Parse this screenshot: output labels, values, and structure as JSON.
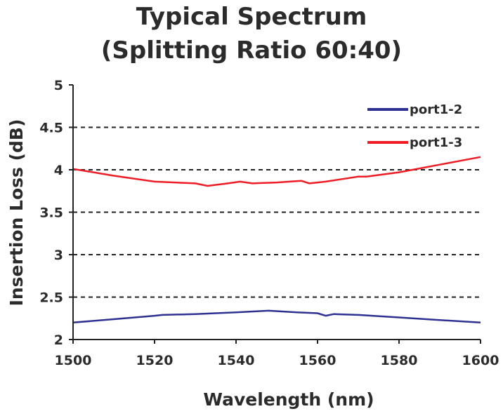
{
  "chart_data": {
    "type": "line",
    "title_line1": "Typical Spectrum",
    "title_line2": "(Splitting Ratio 60:40)",
    "xlabel": "Wavelength (nm)",
    "ylabel": "Insertion Loss (dB)",
    "xlim": [
      1500,
      1600
    ],
    "ylim": [
      2,
      5
    ],
    "xticks": [
      1500,
      1520,
      1540,
      1560,
      1580,
      1600
    ],
    "yticks": [
      2,
      2.5,
      3,
      3.5,
      4,
      4.5,
      5
    ],
    "ytick_labels": [
      "2",
      "2.5",
      "3",
      "3.5",
      "4",
      "4.5",
      "5"
    ],
    "grid": "horizontal-dashed",
    "legend_position": "top-right",
    "series": [
      {
        "name": "port1-2",
        "color": "#2e3192",
        "x": [
          1500,
          1510,
          1520,
          1522,
          1530,
          1540,
          1548,
          1555,
          1560,
          1562,
          1564,
          1570,
          1580,
          1590,
          1600
        ],
        "y": [
          2.2,
          2.24,
          2.28,
          2.29,
          2.3,
          2.32,
          2.34,
          2.32,
          2.31,
          2.28,
          2.3,
          2.29,
          2.26,
          2.23,
          2.2
        ]
      },
      {
        "name": "port1-3",
        "color": "#ee1c25",
        "x": [
          1500,
          1510,
          1520,
          1530,
          1533,
          1538,
          1541,
          1544,
          1550,
          1556,
          1558,
          1562,
          1566,
          1570,
          1572,
          1580,
          1590,
          1600
        ],
        "y": [
          4.01,
          3.93,
          3.86,
          3.84,
          3.81,
          3.84,
          3.86,
          3.84,
          3.85,
          3.87,
          3.84,
          3.86,
          3.89,
          3.92,
          3.92,
          3.97,
          4.06,
          4.15
        ]
      }
    ]
  }
}
